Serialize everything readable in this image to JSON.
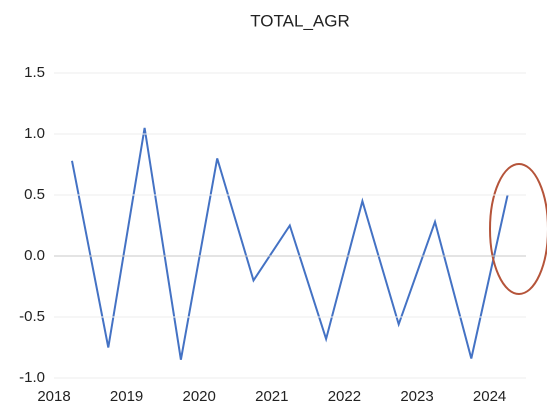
{
  "chart_data": {
    "type": "line",
    "title": "TOTAL_AGR",
    "categories": [
      "2018",
      null,
      "2019",
      null,
      "2020",
      null,
      "2021",
      null,
      "2022",
      null,
      "2023",
      null,
      "2024"
    ],
    "values": [
      0.78,
      -0.75,
      1.05,
      -0.85,
      0.8,
      -0.2,
      0.25,
      -0.68,
      0.45,
      -0.56,
      0.28,
      -0.84,
      0.5
    ],
    "color": "#4472c4",
    "ylim": [
      -1.0,
      1.5
    ],
    "yticks": [
      {
        "value": -1.0,
        "label": "-1.0"
      },
      -0.5,
      {
        "value": 0.0,
        "label": "0.0"
      },
      0.5,
      {
        "value": 1.0,
        "label": "1.0"
      },
      1.5
    ],
    "grid": true
  }
}
